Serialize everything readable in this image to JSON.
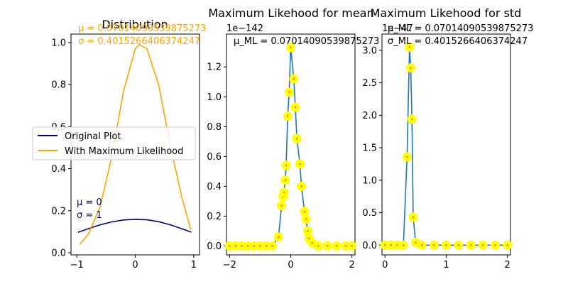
{
  "colors": {
    "orig": "#000080",
    "ml": "#ffa500",
    "line": "#1f77b4",
    "marker": "#ffff00",
    "markerDot": "#ff7070",
    "axis": "#000000"
  },
  "chart_data": [
    {
      "type": "line",
      "title": "Distribution",
      "xlabel": "",
      "ylabel": "",
      "xlim": [
        -1.1,
        1.1
      ],
      "ylim": [
        -0.01,
        1.04
      ],
      "xticks": [
        -1,
        0,
        1
      ],
      "xtick_labels": [
        "−1",
        "0",
        "1"
      ],
      "yticks": [
        0.0,
        0.2,
        0.4,
        0.6,
        0.8,
        1.0
      ],
      "ytick_labels": [
        "0.0",
        "0.2",
        "0.4",
        "0.6",
        "0.8",
        "1.0"
      ],
      "grid": false,
      "legend": {
        "placement": "left-overflow",
        "entries": [
          "Original Plot",
          "With Maximum Likelihood"
        ]
      },
      "series": [
        {
          "name": "Original Plot",
          "color": "orig",
          "x": [
            -0.98,
            -0.8,
            -0.6,
            -0.4,
            -0.2,
            0.0,
            0.2,
            0.4,
            0.6,
            0.8,
            0.96
          ],
          "y": [
            0.097,
            0.115,
            0.133,
            0.147,
            0.156,
            0.159,
            0.157,
            0.148,
            0.133,
            0.114,
            0.098
          ]
        },
        {
          "name": "With Maximum Likelihood",
          "color": "ml",
          "x": [
            -0.95,
            -0.8,
            -0.6,
            -0.4,
            -0.2,
            0.0,
            0.07,
            0.2,
            0.4,
            0.6,
            0.8,
            0.95
          ],
          "y": [
            0.04,
            0.09,
            0.22,
            0.46,
            0.77,
            0.97,
            0.99,
            0.97,
            0.8,
            0.51,
            0.26,
            0.11
          ]
        }
      ],
      "annotations": {
        "ml_mu": "μ = 0.07014090539875273",
        "ml_sigma": "σ = 0.4015266406374247",
        "orig_mu": "μ = 0",
        "orig_sigma": "σ = 1"
      }
    },
    {
      "type": "line",
      "title": "Maximum Likehood for mean",
      "offset_label": "1e−142",
      "annotation": "μ_ML = 0.07014090539875273",
      "xlim": [
        -2.1,
        2.1
      ],
      "ylim": [
        -0.06,
        1.42
      ],
      "xticks": [
        -2,
        0,
        2
      ],
      "xtick_labels": [
        "−2",
        "0",
        "2"
      ],
      "yticks": [
        0.0,
        0.2,
        0.4,
        0.6,
        0.8,
        1.0,
        1.2
      ],
      "ytick_labels": [
        "0.0",
        "0.2",
        "0.4",
        "0.6",
        "0.8",
        "1.0",
        "1.2"
      ],
      "x": [
        -2.0,
        -1.8,
        -1.6,
        -1.4,
        -1.2,
        -1.0,
        -0.8,
        -0.6,
        -0.4,
        -0.3,
        -0.25,
        -0.22,
        -0.18,
        -0.15,
        -0.1,
        -0.05,
        0.0,
        0.1,
        0.15,
        0.2,
        0.3,
        0.35,
        0.45,
        0.5,
        0.55,
        0.6,
        0.7,
        0.9,
        1.2,
        1.5,
        1.8,
        2.0
      ],
      "y": [
        0.0,
        0.0,
        0.0,
        0.0,
        0.0,
        0.0,
        0.0,
        0.0,
        0.06,
        0.27,
        0.33,
        0.36,
        0.44,
        0.54,
        0.87,
        1.03,
        1.33,
        1.12,
        0.93,
        0.72,
        0.55,
        0.4,
        0.23,
        0.18,
        0.1,
        0.05,
        0.02,
        0.0,
        0.0,
        0.0,
        0.0,
        0.0
      ]
    },
    {
      "type": "line",
      "title": "Maximum Likehood for std",
      "offset_label": "1e−47",
      "annotation_mu": "μ_ML = 0.07014090539875273",
      "annotation_sigma": "σ_ML = 0.4015266406374247",
      "xlim": [
        -0.05,
        2.05
      ],
      "ylim": [
        -0.15,
        3.25
      ],
      "xticks": [
        0,
        1,
        2
      ],
      "xtick_labels": [
        "0",
        "1",
        "2"
      ],
      "yticks": [
        0.0,
        0.5,
        1.0,
        1.5,
        2.0,
        2.5,
        3.0
      ],
      "ytick_labels": [
        "0.0",
        "0.5",
        "1.0",
        "1.5",
        "2.0",
        "2.5",
        "3.0"
      ],
      "x": [
        0.0,
        0.1,
        0.2,
        0.3,
        0.36,
        0.4,
        0.42,
        0.44,
        0.46,
        0.5,
        0.6,
        0.8,
        1.0,
        1.2,
        1.4,
        1.6,
        1.8,
        2.0
      ],
      "y": [
        0.0,
        0.0,
        0.0,
        0.0,
        1.36,
        3.05,
        2.73,
        1.94,
        0.43,
        0.04,
        0.0,
        0.0,
        0.0,
        0.0,
        0.0,
        0.0,
        0.0,
        0.0
      ]
    }
  ]
}
